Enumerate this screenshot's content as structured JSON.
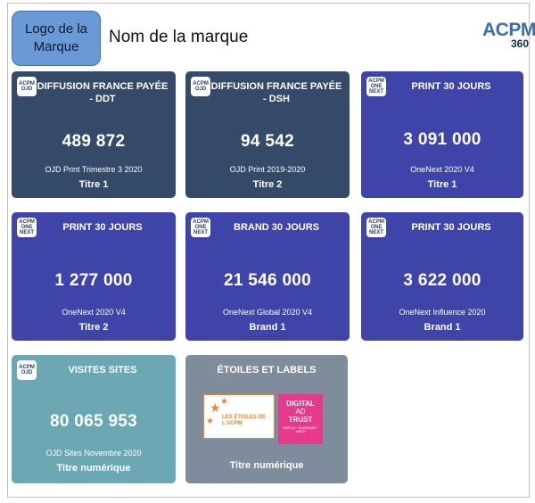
{
  "header": {
    "logo_placeholder": "Logo de la Marque",
    "brand_name": "Nom de la marque",
    "acpm_logo": {
      "main": "ACPM",
      "sub": "360"
    }
  },
  "cards": [
    {
      "badge": "ACPM OJD",
      "title": "DIFFUSION FRANCE PAYÉE - DDT",
      "value": "489 872",
      "source": "OJD Print Trimestre 3 2020",
      "label": "Titre 1"
    },
    {
      "badge": "ACPM OJD",
      "title": "DIFFUSION FRANCE PAYÉE - DSH",
      "value": "94 542",
      "source": "OJD Print 2019-2020",
      "label": "Titre 2"
    },
    {
      "badge": "ACPM ONE NEXT",
      "title": "PRINT 30 JOURS",
      "value": "3 091 000",
      "source": "OneNext 2020 V4",
      "label": "Titre 1"
    },
    {
      "badge": "ACPM ONE NEXT",
      "title": "PRINT 30 JOURS",
      "value": "1 277 000",
      "source": "OneNext 2020 V4",
      "label": "Titre 2"
    },
    {
      "badge": "ACPM ONE NEXT",
      "title": "BRAND 30 JOURS",
      "value": "21 546 000",
      "source": "OneNext Global 2020 V4",
      "label": "Brand 1"
    },
    {
      "badge": "ACPM ONE NEXT",
      "title": "PRINT 30 JOURS",
      "value": "3 622 000",
      "source": "OneNext Influence 2020",
      "label": "Brand 1"
    },
    {
      "badge": "ACPM OJD",
      "title": "VISITES SITES",
      "value": "80 065 953",
      "source": "OJD Sites Novembre 2020",
      "label": "Titre numérique"
    },
    {
      "title": "ÉTOILES ET LABELS",
      "label": "Titre numérique",
      "stars_logo_text": "LES ÉTOILES DE L'ACPM",
      "trust_logo": {
        "line1": "DIGITAL",
        "line2": "AD",
        "line3": "TRUST",
        "small": "DISPLAY · CLASSIQUE · VIDEO"
      }
    }
  ],
  "colors": {
    "dark": "#344a68",
    "blue": "#3f45a8",
    "teal": "#6aa9b3",
    "grey": "#7f8c9c"
  }
}
